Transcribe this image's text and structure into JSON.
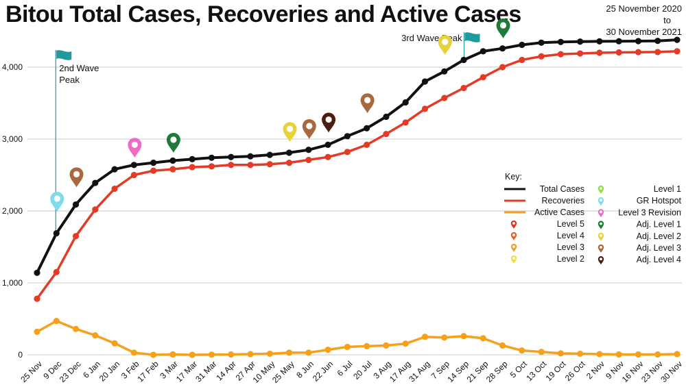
{
  "title": "Bitou Total Cases, Recoveries and Active Cases",
  "date_range": {
    "line1": "25 November 2020",
    "line2": "to",
    "line3": "30 November 2021"
  },
  "chart_data": {
    "type": "line",
    "categories": [
      "25 Nov",
      "9 Dec",
      "23 Dec",
      "6 Jan",
      "20 Jan",
      "3 Feb",
      "17 Feb",
      "3 Mar",
      "17 Mar",
      "31 Mar",
      "14 Apr",
      "27 Apr",
      "10 May",
      "25 May",
      "8 Jun",
      "22 Jun",
      "6 Jul",
      "20 Jul",
      "3 Aug",
      "17 Aug",
      "31 Aug",
      "7 Sep",
      "14 Sep",
      "21 Sep",
      "28 Sep",
      "5 Oct",
      "13 Oct",
      "19 Oct",
      "26 Oct",
      "2 Nov",
      "9 Nov",
      "16 Nov",
      "23 Nov",
      "30 Nov"
    ],
    "ylim": [
      0,
      4400
    ],
    "yticks": [
      "0",
      "1,000",
      "2,000",
      "3,000",
      "4,000"
    ],
    "ytick_values": [
      0,
      1000,
      2000,
      3000,
      4000
    ],
    "grid": true,
    "series": [
      {
        "name": "Total Cases",
        "color": "#111111",
        "values": [
          1140,
          1690,
          2090,
          2390,
          2580,
          2640,
          2670,
          2700,
          2720,
          2740,
          2750,
          2760,
          2780,
          2810,
          2850,
          2920,
          3040,
          3150,
          3310,
          3510,
          3800,
          3940,
          4100,
          4220,
          4260,
          4310,
          4340,
          4350,
          4355,
          4358,
          4360,
          4362,
          4365,
          4380
        ]
      },
      {
        "name": "Recoveries",
        "color": "#e33b26",
        "values": [
          780,
          1150,
          1650,
          2020,
          2310,
          2500,
          2560,
          2580,
          2610,
          2620,
          2640,
          2640,
          2650,
          2670,
          2710,
          2750,
          2820,
          2920,
          3070,
          3230,
          3420,
          3570,
          3710,
          3860,
          4000,
          4100,
          4150,
          4180,
          4190,
          4200,
          4205,
          4208,
          4210,
          4220
        ]
      },
      {
        "name": "Active Cases",
        "color": "#f5a11c",
        "values": [
          320,
          470,
          360,
          270,
          160,
          30,
          0,
          5,
          0,
          2,
          5,
          10,
          15,
          30,
          30,
          70,
          110,
          120,
          130,
          155,
          250,
          240,
          260,
          230,
          130,
          60,
          40,
          20,
          15,
          10,
          5,
          5,
          5,
          10
        ]
      }
    ],
    "annotations": [
      {
        "text_line1": "2nd Wave",
        "text_line2": "Peak",
        "category": "9 Dec"
      },
      {
        "text": "3rd Wave Peak",
        "category": "14 Sep"
      }
    ],
    "markers": [
      {
        "category": "9 Dec",
        "value": 1990,
        "type": "GR Hotspot"
      },
      {
        "category": "23 Dec",
        "value": 2330,
        "type": "Adj. Level 3"
      },
      {
        "category": "3 Feb",
        "value": 2740,
        "type": "Level 3 Revision"
      },
      {
        "category": "3 Mar",
        "value": 2810,
        "type": "Adj. Level 1"
      },
      {
        "category": "25 May",
        "value": 2960,
        "type": "Adj. Level 2"
      },
      {
        "category": "8 Jun",
        "value": 3000,
        "type": "Adj. Level 3"
      },
      {
        "category": "22 Jun",
        "value": 3090,
        "type": "Adj. Level 4"
      },
      {
        "category": "20 Jul",
        "value": 3360,
        "type": "Adj. Level 3"
      },
      {
        "category": "7 Sep",
        "value": 4170,
        "type": "Adj. Level 2"
      },
      {
        "category": "28 Sep",
        "value": 4400,
        "type": "Adj. Level 1"
      }
    ],
    "legend": {
      "title": "Key:",
      "placement": "right",
      "lines": [
        {
          "label": "Total Cases",
          "color": "#111111"
        },
        {
          "label": "Recoveries",
          "color": "#e33b26"
        },
        {
          "label": "Active Cases",
          "color": "#f5a11c"
        }
      ],
      "markers_left": [
        {
          "label": "Level 5",
          "color": "#e0342a"
        },
        {
          "label": "Level 4",
          "color": "#e8622a"
        },
        {
          "label": "Level 3",
          "color": "#f0a02a"
        },
        {
          "label": "Level 2",
          "color": "#f3dc3c"
        }
      ],
      "markers_right": [
        {
          "label": "Level 1",
          "color": "#8ee03a"
        },
        {
          "label": "GR Hotspot",
          "color": "#7fdcea"
        },
        {
          "label": "Level 3 Revision",
          "color": "#f06ac8"
        },
        {
          "label": "Adj. Level 1",
          "color": "#1f7a3a"
        },
        {
          "label": "Adj. Level 2",
          "color": "#e8d23a"
        },
        {
          "label": "Adj. Level 3",
          "color": "#a86a3c"
        },
        {
          "label": "Adj. Level 4",
          "color": "#4a1e10"
        }
      ]
    },
    "marker_colors": {
      "GR Hotspot": "#7fdcea",
      "Adj. Level 3": "#a86a3c",
      "Level 3 Revision": "#f06ac8",
      "Adj. Level 1": "#1f7a3a",
      "Adj. Level 2": "#e8d23a",
      "Adj. Level 4": "#4a1e10"
    },
    "flag_color": "#1f9b9b"
  }
}
